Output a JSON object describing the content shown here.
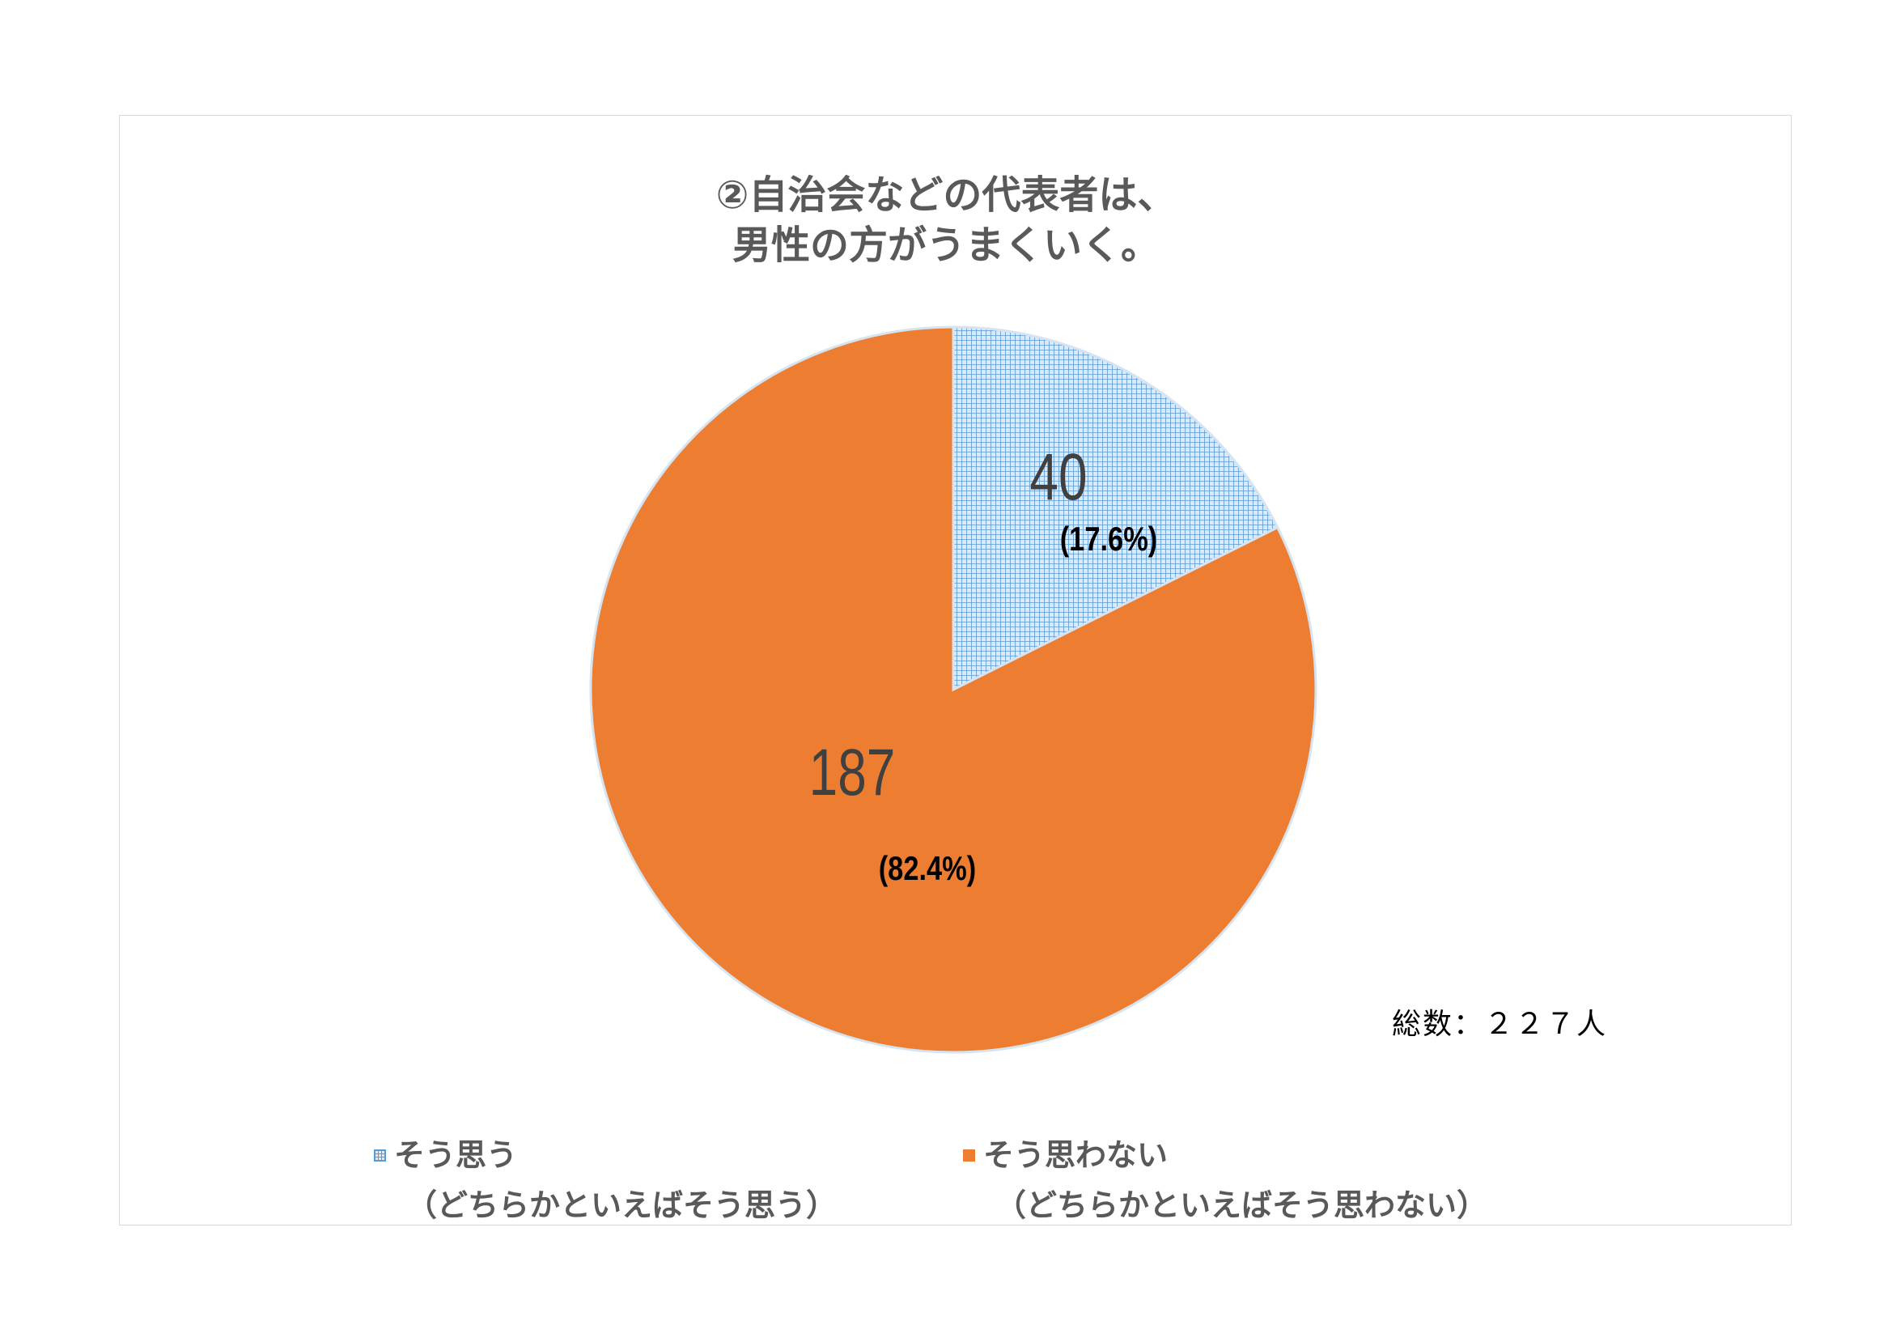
{
  "chart_data": {
    "type": "pie",
    "title_lines": [
      "②自治会などの代表者は、",
      "男性の方がうまくいく。"
    ],
    "total_label": "総数：２２７人",
    "start_angle_deg": 0,
    "direction": "clockwise",
    "slices": [
      {
        "legend_line1": "そう思う",
        "legend_line2": "（どちらかといえばそう思う）",
        "value": 40,
        "value_label": "40",
        "percent_label": "(17.6%)",
        "fill": "#dbe8f5",
        "pattern_color": "#5b9bd5",
        "patterned": true
      },
      {
        "legend_line1": "そう思わない",
        "legend_line2": "（どちらかといえばそう思わない）",
        "value": 187,
        "value_label": "187",
        "percent_label": "(82.4%)",
        "fill": "#ed7d31",
        "pattern_color": "",
        "patterned": false
      }
    ],
    "colors": {
      "value_text": "#404040",
      "percent_text": "#000000",
      "slice_border": "#d6e4f1"
    }
  }
}
